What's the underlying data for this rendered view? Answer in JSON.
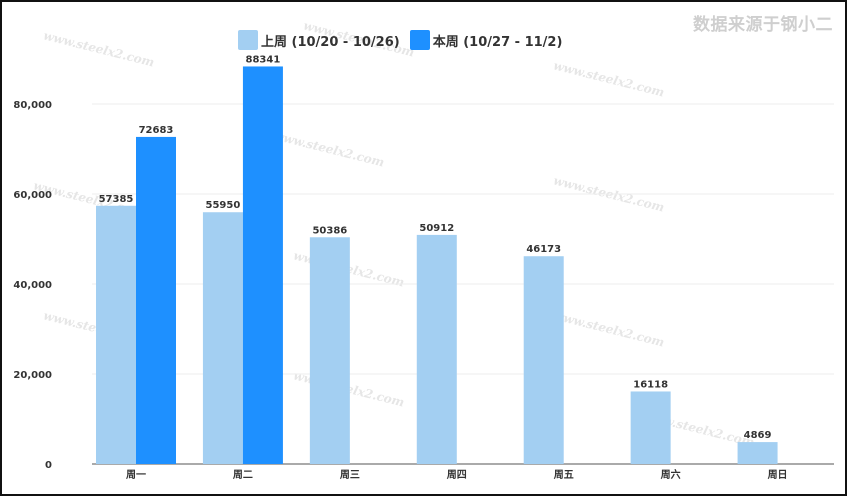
{
  "source_label": "数据来源于钢小二",
  "watermark": "www.steelx2.com",
  "colors": {
    "last_week": "#a3cff2",
    "this_week": "#1e90ff",
    "grid": "#eeeeee",
    "axis": "#555555",
    "label": "#333333"
  },
  "chart_data": {
    "type": "bar",
    "categories": [
      "周一",
      "周二",
      "周三",
      "周四",
      "周五",
      "周六",
      "周日"
    ],
    "series": [
      {
        "name": "上周 (10/20 - 10/26)",
        "values": [
          57385,
          55950,
          50386,
          50912,
          46173,
          16118,
          4869
        ]
      },
      {
        "name": "本周 (10/27 - 11/2)",
        "values": [
          72683,
          88341,
          null,
          null,
          null,
          null,
          null
        ]
      }
    ],
    "yticks": [
      0,
      20000,
      40000,
      60000,
      80000
    ],
    "ytick_labels": [
      "0",
      "20,000",
      "40,000",
      "60,000",
      "80,000"
    ],
    "ylim": [
      0,
      90000
    ],
    "grid": true,
    "legend": "top-center",
    "xlabel": "",
    "ylabel": ""
  }
}
